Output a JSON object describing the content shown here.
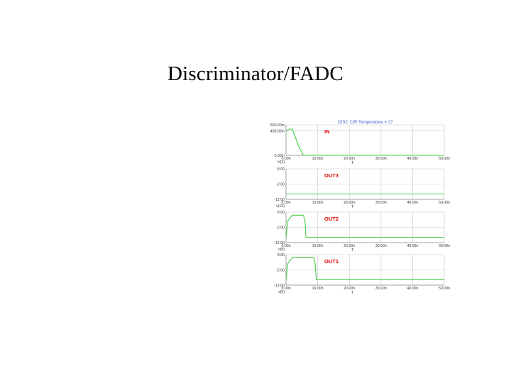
{
  "slide": {
    "title": "Discriminator/FADC"
  },
  "chart_data": {
    "type": "line",
    "title": "DISC CIR Temperature = 27",
    "colors": {
      "trace": "#3fcc3f",
      "grid": "#c8c8c8",
      "label": "#e00000",
      "title": "#4a5ad0"
    },
    "grid": true,
    "panels": [
      {
        "label": "IN",
        "signal": "V(1)",
        "xlabel": "T",
        "xlim": [
          0,
          50
        ],
        "xticks": [
          "0.00n",
          "10.00n",
          "20.00n",
          "30.00n",
          "40.00n",
          "50.00n"
        ],
        "ylim": [
          0,
          0.5
        ],
        "yticks": [
          "500.00m",
          "400.00m",
          "0.00m"
        ],
        "ytick_values": [
          0.5,
          0.4,
          0.0
        ],
        "x": [
          0,
          1.2,
          2,
          4,
          5.5,
          50
        ],
        "y": [
          0.4,
          0.43,
          0.43,
          0.15,
          0.0,
          0.0
        ]
      },
      {
        "label": "OUT3",
        "signal": "v(13)",
        "xlabel": "T",
        "xlim": [
          0,
          50
        ],
        "xticks": [
          "0.00n",
          "10.00n",
          "20.00n",
          "30.00n",
          "40.00n",
          "50.00n"
        ],
        "ylim": [
          -12,
          8
        ],
        "yticks": [
          "8.00",
          "-2.00",
          "-12.00"
        ],
        "ytick_values": [
          8,
          -2,
          -12
        ],
        "x": [
          0,
          50
        ],
        "y": [
          -8.5,
          -8.5
        ]
      },
      {
        "label": "OUT2",
        "signal": "v(8)",
        "xlabel": "T",
        "xlim": [
          0,
          50
        ],
        "xticks": [
          "0.00n",
          "10.00n",
          "20.00n",
          "30.00n",
          "40.00n",
          "50.00n"
        ],
        "ylim": [
          -12,
          8
        ],
        "yticks": [
          "8.00",
          "-2.00",
          "-12.00"
        ],
        "ytick_values": [
          8,
          -2,
          -12
        ],
        "x": [
          0,
          0.5,
          2,
          5.5,
          6,
          6.3,
          50
        ],
        "y": [
          -8.5,
          2,
          6,
          6,
          2,
          -8.5,
          -8.5
        ]
      },
      {
        "label": "OUT1",
        "signal": "v(5)",
        "xlabel": "T",
        "xlim": [
          0,
          50
        ],
        "xticks": [
          "0.00n",
          "10.00n",
          "20.00n",
          "30.00n",
          "40.00n",
          "50.00n"
        ],
        "ylim": [
          -12,
          8
        ],
        "yticks": [
          "8.00",
          "-2.00",
          "-12.00"
        ],
        "ytick_values": [
          8,
          -2,
          -12
        ],
        "x": [
          0,
          0.5,
          2,
          8.8,
          9.2,
          9.6,
          50
        ],
        "y": [
          -8.5,
          2,
          6,
          6,
          2,
          -8.5,
          -8.5
        ]
      }
    ]
  }
}
